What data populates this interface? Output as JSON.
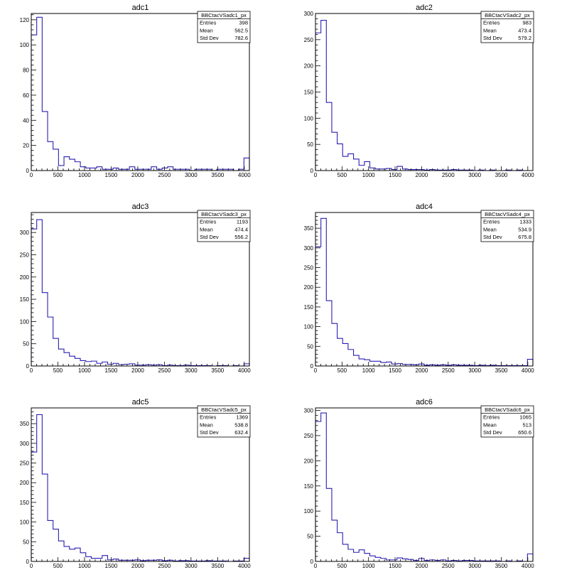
{
  "chart_data": [
    {
      "type": "bar",
      "title": "adc1",
      "x_range": [
        0,
        4096
      ],
      "bin_width": 102.4,
      "ylim": [
        0,
        125
      ],
      "x_ticks": [
        0,
        500,
        1000,
        1500,
        2000,
        2500,
        3000,
        3500,
        4000
      ],
      "y_ticks": [
        0,
        20,
        40,
        60,
        80,
        100,
        120
      ],
      "values": [
        108,
        122,
        47,
        23,
        17,
        4,
        11,
        9,
        7,
        3,
        2,
        2,
        3,
        1,
        1,
        2,
        1,
        1,
        3,
        1,
        1,
        1,
        3,
        1,
        2,
        3,
        1,
        1,
        1,
        0,
        1,
        1,
        1,
        0,
        1,
        1,
        1,
        0,
        1,
        10
      ],
      "stats": {
        "name": "BBCtacVSadc1_px",
        "rows": [
          [
            "Entries",
            "398"
          ],
          [
            "Mean",
            "562.5"
          ],
          [
            "Std Dev",
            "782.6"
          ]
        ]
      }
    },
    {
      "type": "bar",
      "title": "adc2",
      "x_range": [
        0,
        4096
      ],
      "bin_width": 102.4,
      "ylim": [
        0,
        300
      ],
      "x_ticks": [
        0,
        500,
        1000,
        1500,
        2000,
        2500,
        3000,
        3500,
        4000
      ],
      "y_ticks": [
        0,
        50,
        100,
        150,
        200,
        250,
        300
      ],
      "values": [
        263,
        287,
        130,
        73,
        51,
        27,
        32,
        22,
        10,
        17,
        5,
        3,
        3,
        4,
        2,
        8,
        3,
        2,
        2,
        2,
        1,
        2,
        1,
        1,
        1,
        2,
        1,
        1,
        1,
        0,
        1,
        0,
        1,
        0,
        0,
        1,
        0,
        1,
        0,
        0
      ],
      "stats": {
        "name": "BBCtacVSadc2_px",
        "rows": [
          [
            "Entries",
            "983"
          ],
          [
            "Mean",
            "473.4"
          ],
          [
            "Std Dev",
            "579.2"
          ]
        ]
      }
    },
    {
      "type": "bar",
      "title": "adc3",
      "x_range": [
        0,
        4096
      ],
      "bin_width": 102.4,
      "ylim": [
        0,
        345
      ],
      "x_ticks": [
        0,
        500,
        1000,
        1500,
        2000,
        2500,
        3000,
        3500,
        4000
      ],
      "y_ticks": [
        0,
        50,
        100,
        150,
        200,
        250,
        300
      ],
      "values": [
        308,
        329,
        165,
        110,
        62,
        38,
        30,
        22,
        17,
        12,
        10,
        11,
        6,
        9,
        4,
        6,
        3,
        4,
        5,
        2,
        2,
        3,
        2,
        3,
        1,
        2,
        1,
        1,
        2,
        1,
        1,
        1,
        1,
        0,
        1,
        1,
        0,
        1,
        0,
        5
      ],
      "stats": {
        "name": "BBCtacVSadc3_px",
        "rows": [
          [
            "Entries",
            "1193"
          ],
          [
            "Mean",
            "474.4"
          ],
          [
            "Std Dev",
            "556.2"
          ]
        ]
      }
    },
    {
      "type": "bar",
      "title": "adc4",
      "x_range": [
        0,
        4096
      ],
      "bin_width": 102.4,
      "ylim": [
        0,
        390
      ],
      "x_ticks": [
        0,
        500,
        1000,
        1500,
        2000,
        2500,
        3000,
        3500,
        4000
      ],
      "y_ticks": [
        0,
        50,
        100,
        150,
        200,
        250,
        300,
        350
      ],
      "values": [
        303,
        375,
        166,
        108,
        70,
        57,
        42,
        27,
        18,
        16,
        12,
        12,
        9,
        10,
        5,
        6,
        4,
        4,
        3,
        5,
        2,
        3,
        2,
        3,
        2,
        3,
        2,
        2,
        2,
        1,
        2,
        1,
        2,
        1,
        1,
        1,
        1,
        1,
        1,
        17
      ],
      "stats": {
        "name": "BBCtacVSadc4_px",
        "rows": [
          [
            "Entries",
            "1333"
          ],
          [
            "Mean",
            "534.9"
          ],
          [
            "Std Dev",
            "675.8"
          ]
        ]
      }
    },
    {
      "type": "bar",
      "title": "adc5",
      "x_range": [
        0,
        4096
      ],
      "bin_width": 102.4,
      "ylim": [
        0,
        390
      ],
      "x_ticks": [
        0,
        500,
        1000,
        1500,
        2000,
        2500,
        3000,
        3500,
        4000
      ],
      "y_ticks": [
        0,
        50,
        100,
        150,
        200,
        250,
        300,
        350
      ],
      "values": [
        278,
        373,
        222,
        104,
        82,
        52,
        38,
        31,
        34,
        22,
        12,
        8,
        8,
        15,
        4,
        6,
        3,
        3,
        3,
        4,
        2,
        3,
        3,
        4,
        2,
        3,
        1,
        2,
        2,
        1,
        1,
        1,
        2,
        1,
        1,
        1,
        0,
        1,
        1,
        8
      ],
      "stats": {
        "name": "BBCtacVSadc5_px",
        "rows": [
          [
            "Entries",
            "1369"
          ],
          [
            "Mean",
            "538.8"
          ],
          [
            "Std Dev",
            "632.4"
          ]
        ]
      }
    },
    {
      "type": "bar",
      "title": "adc6",
      "x_range": [
        0,
        4096
      ],
      "bin_width": 102.4,
      "ylim": [
        0,
        305
      ],
      "x_ticks": [
        0,
        500,
        1000,
        1500,
        2000,
        2500,
        3000,
        3500,
        4000
      ],
      "y_ticks": [
        0,
        50,
        100,
        150,
        200,
        250,
        300
      ],
      "values": [
        278,
        295,
        145,
        82,
        57,
        34,
        24,
        18,
        23,
        16,
        11,
        8,
        6,
        3,
        3,
        7,
        5,
        4,
        2,
        6,
        2,
        3,
        2,
        3,
        1,
        2,
        1,
        2,
        2,
        1,
        1,
        1,
        1,
        1,
        0,
        1,
        0,
        1,
        0,
        15
      ],
      "stats": {
        "name": "BBCtacVSadc6_px",
        "rows": [
          [
            "Entries",
            "1065"
          ],
          [
            "Mean",
            "513"
          ],
          [
            "Std Dev",
            "650.6"
          ]
        ]
      }
    }
  ]
}
